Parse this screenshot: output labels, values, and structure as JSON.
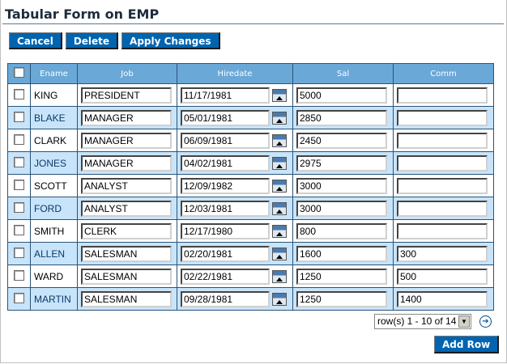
{
  "title": "Tabular Form on EMP",
  "buttons": {
    "cancel": "Cancel",
    "delete": "Delete",
    "apply": "Apply Changes",
    "add_row": "Add Row"
  },
  "columns": [
    "Ename",
    "Job",
    "Hiredate",
    "Sal",
    "Comm"
  ],
  "rows": [
    {
      "ename": "KING",
      "job": "PRESIDENT",
      "hiredate": "11/17/1981",
      "sal": "5000",
      "comm": ""
    },
    {
      "ename": "BLAKE",
      "job": "MANAGER",
      "hiredate": "05/01/1981",
      "sal": "2850",
      "comm": ""
    },
    {
      "ename": "CLARK",
      "job": "MANAGER",
      "hiredate": "06/09/1981",
      "sal": "2450",
      "comm": ""
    },
    {
      "ename": "JONES",
      "job": "MANAGER",
      "hiredate": "04/02/1981",
      "sal": "2975",
      "comm": ""
    },
    {
      "ename": "SCOTT",
      "job": "ANALYST",
      "hiredate": "12/09/1982",
      "sal": "3000",
      "comm": ""
    },
    {
      "ename": "FORD",
      "job": "ANALYST",
      "hiredate": "12/03/1981",
      "sal": "3000",
      "comm": ""
    },
    {
      "ename": "SMITH",
      "job": "CLERK",
      "hiredate": "12/17/1980",
      "sal": "800",
      "comm": ""
    },
    {
      "ename": "ALLEN",
      "job": "SALESMAN",
      "hiredate": "02/20/1981",
      "sal": "1600",
      "comm": "300"
    },
    {
      "ename": "WARD",
      "job": "SALESMAN",
      "hiredate": "02/22/1981",
      "sal": "1250",
      "comm": "500"
    },
    {
      "ename": "MARTIN",
      "job": "SALESMAN",
      "hiredate": "09/28/1981",
      "sal": "1250",
      "comm": "1400"
    }
  ],
  "pagination": {
    "selected": "row(s) 1 - 10 of 14",
    "next_icon": "arrow-right-circle"
  }
}
